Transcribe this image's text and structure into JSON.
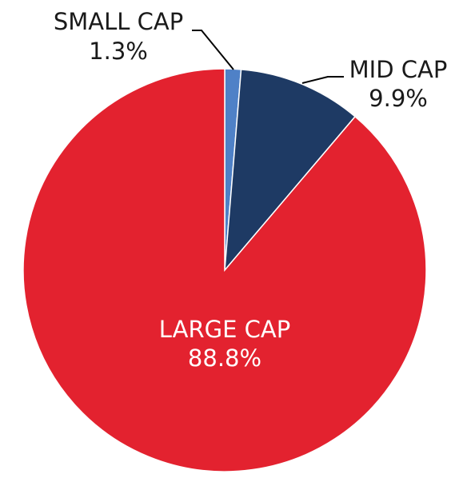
{
  "chart_data": {
    "type": "pie",
    "start_angle_deg": 0,
    "direction": "clockwise",
    "slices": [
      {
        "label": "SMALL CAP",
        "value": 1.3,
        "value_label": "1.3%",
        "color": "#4f81c7",
        "label_position": "outside"
      },
      {
        "label": "MID CAP",
        "value": 9.9,
        "value_label": "9.9%",
        "color": "#1e3a64",
        "label_position": "outside"
      },
      {
        "label": "LARGE CAP",
        "value": 88.8,
        "value_label": "88.8%",
        "color": "#e3222f",
        "label_position": "inside"
      }
    ]
  }
}
